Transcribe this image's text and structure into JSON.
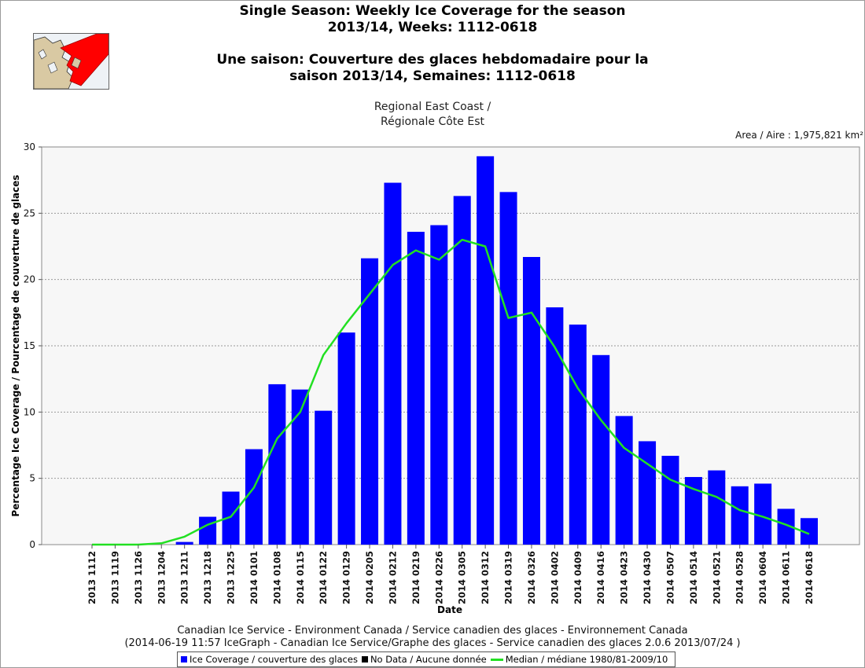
{
  "header": {
    "title_en_1": "Single Season: Weekly Ice Coverage for the season",
    "title_en_2": "2013/14, Weeks: 1112-0618",
    "title_fr_1": "Une saison: Couverture des glaces hebdomadaire pour la",
    "title_fr_2": "saison 2013/14, Semaines: 1112-0618",
    "region_en": "Regional East Coast /",
    "region_fr": "Régionale Côte Est",
    "area": "Area / Aire : 1,975,821 km²"
  },
  "footer": {
    "line1": "Canadian Ice Service - Environment Canada / Service canadien des glaces - Environnement Canada",
    "line2": "(2014-06-19 11:57 IceGraph - Canadian Ice Service/Graphe des glaces - Service canadien des glaces 2.0.6 2013/07/24 )"
  },
  "legend": {
    "ice": "Ice Coverage / couverture des glaces",
    "nodata": "No Data / Aucune donnée",
    "median": "Median / médiane 1980/81-2009/10"
  },
  "colors": {
    "bar": "#0000ff",
    "median": "#22e022",
    "plot_bg": "#f7f7f7",
    "grid": "#9a9a9a",
    "nodata": "#000000"
  },
  "chart_data": {
    "type": "bar",
    "title": "Single Season: Weekly Ice Coverage for the season 2013/14, Weeks: 1112-0618",
    "xlabel": "Date",
    "ylabel": "Percentage Ice Coverage / Pourcentage de couverture de glaces",
    "ylim": [
      0,
      30
    ],
    "yticks": [
      0,
      5,
      10,
      15,
      20,
      25,
      30
    ],
    "grid": true,
    "legend_position": "bottom",
    "categories": [
      "2013 1112",
      "2013 1119",
      "2013 1126",
      "2013 1204",
      "2013 1211",
      "2013 1218",
      "2013 1225",
      "2014 0101",
      "2014 0108",
      "2014 0115",
      "2014 0122",
      "2014 0129",
      "2014 0205",
      "2014 0212",
      "2014 0219",
      "2014 0226",
      "2014 0305",
      "2014 0312",
      "2014 0319",
      "2014 0326",
      "2014 0402",
      "2014 0409",
      "2014 0416",
      "2014 0423",
      "2014 0430",
      "2014 0507",
      "2014 0514",
      "2014 0521",
      "2014 0528",
      "2014 0604",
      "2014 0611",
      "2014 0618"
    ],
    "series": [
      {
        "name": "Ice Coverage / couverture des glaces",
        "type": "bar",
        "values": [
          0,
          0,
          0,
          0,
          0.2,
          2.1,
          4.0,
          7.2,
          12.1,
          11.7,
          10.1,
          16.0,
          21.6,
          27.3,
          23.6,
          24.1,
          26.3,
          29.3,
          26.6,
          21.7,
          17.9,
          16.6,
          14.3,
          9.7,
          7.8,
          6.7,
          5.1,
          5.6,
          4.4,
          4.6,
          2.7,
          2.0
        ]
      },
      {
        "name": "Median / médiane 1980/81-2009/10",
        "type": "line",
        "values": [
          0,
          0,
          0,
          0.1,
          0.6,
          1.5,
          2.1,
          4.3,
          8.0,
          10.0,
          14.3,
          16.7,
          18.9,
          21.1,
          22.2,
          21.5,
          23.0,
          22.5,
          17.1,
          17.5,
          14.9,
          11.8,
          9.4,
          7.3,
          6.1,
          4.9,
          4.2,
          3.6,
          2.6,
          2.1,
          1.5,
          0.8
        ]
      }
    ]
  }
}
